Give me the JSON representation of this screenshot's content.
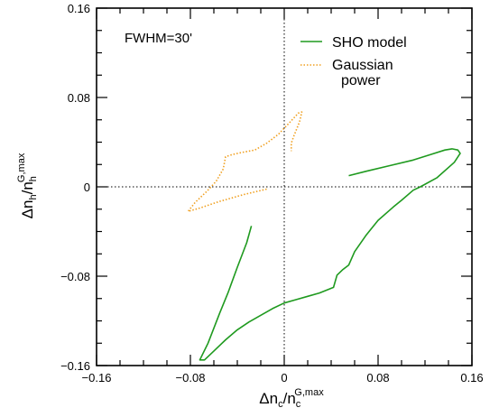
{
  "chart_data": {
    "type": "line",
    "annotation": "FWHM=30'",
    "xlabel": {
      "main": "Δn",
      "sub": "c",
      "slash": "/n",
      "sub2": "c",
      "sup": "G,max"
    },
    "ylabel": {
      "main": "Δn",
      "sub": "h",
      "slash": "/n",
      "sub2": "h",
      "sup": "G,max"
    },
    "xlim": [
      -0.16,
      0.16
    ],
    "ylim": [
      -0.16,
      0.16
    ],
    "xticks": [
      -0.16,
      -0.08,
      0,
      0.08,
      0.16
    ],
    "yticks": [
      -0.16,
      -0.08,
      0,
      0.08,
      0.16
    ],
    "xtick_labels": [
      "−0.16",
      "−0.08",
      "0",
      "0.08",
      "0.16"
    ],
    "ytick_labels": [
      "−0.16",
      "−0.08",
      "0",
      "0.08",
      "0.16"
    ],
    "zero_lines": true,
    "legend_position": "top-right",
    "colors": {
      "sho": "#1f9a1f",
      "gauss": "#f0a020"
    },
    "series": [
      {
        "name": "SHO model",
        "style": "solid",
        "color": "#1f9a1f",
        "points": [
          [
            0.055,
            0.01
          ],
          [
            0.07,
            0.014
          ],
          [
            0.09,
            0.019
          ],
          [
            0.11,
            0.024
          ],
          [
            0.125,
            0.029
          ],
          [
            0.137,
            0.033
          ],
          [
            0.143,
            0.034
          ],
          [
            0.148,
            0.033
          ],
          [
            0.15,
            0.03
          ],
          [
            0.145,
            0.022
          ],
          [
            0.13,
            0.008
          ],
          [
            0.116,
            0.0
          ],
          [
            0.11,
            -0.003
          ],
          [
            0.1,
            -0.012
          ],
          [
            0.093,
            -0.018
          ],
          [
            0.08,
            -0.03
          ],
          [
            0.07,
            -0.043
          ],
          [
            0.06,
            -0.058
          ],
          [
            0.055,
            -0.07
          ],
          [
            0.05,
            -0.074
          ],
          [
            0.045,
            -0.079
          ],
          [
            0.042,
            -0.09
          ],
          [
            0.03,
            -0.095
          ],
          [
            0.02,
            -0.098
          ],
          [
            0.01,
            -0.101
          ],
          [
            0.0,
            -0.104
          ],
          [
            -0.01,
            -0.109
          ],
          [
            -0.02,
            -0.115
          ],
          [
            -0.03,
            -0.121
          ],
          [
            -0.04,
            -0.128
          ],
          [
            -0.05,
            -0.137
          ],
          [
            -0.06,
            -0.147
          ],
          [
            -0.068,
            -0.155
          ],
          [
            -0.072,
            -0.155
          ],
          [
            -0.065,
            -0.14
          ],
          [
            -0.055,
            -0.113
          ],
          [
            -0.048,
            -0.095
          ],
          [
            -0.04,
            -0.072
          ],
          [
            -0.032,
            -0.05
          ],
          [
            -0.028,
            -0.035
          ]
        ]
      },
      {
        "name": "Gaussian power",
        "style": "dotted",
        "color": "#f0a020",
        "points": [
          [
            -0.015,
            -0.002
          ],
          [
            -0.035,
            -0.007
          ],
          [
            -0.055,
            -0.013
          ],
          [
            -0.072,
            -0.019
          ],
          [
            -0.082,
            -0.022
          ],
          [
            -0.076,
            -0.014
          ],
          [
            -0.066,
            -0.004
          ],
          [
            -0.058,
            0.005
          ],
          [
            -0.052,
            0.016
          ],
          [
            -0.05,
            0.027
          ],
          [
            -0.044,
            0.029
          ],
          [
            -0.035,
            0.031
          ],
          [
            -0.025,
            0.033
          ],
          [
            -0.015,
            0.039
          ],
          [
            -0.005,
            0.047
          ],
          [
            0.005,
            0.058
          ],
          [
            0.012,
            0.066
          ],
          [
            0.015,
            0.067
          ],
          [
            0.013,
            0.058
          ],
          [
            0.008,
            0.045
          ],
          [
            0.006,
            0.039
          ],
          [
            0.006,
            0.032
          ]
        ]
      }
    ],
    "legend": [
      {
        "label": "SHO model",
        "lines": [
          "SHO model"
        ]
      },
      {
        "label": "Gaussian power",
        "lines": [
          "Gaussian",
          "power"
        ]
      }
    ]
  }
}
